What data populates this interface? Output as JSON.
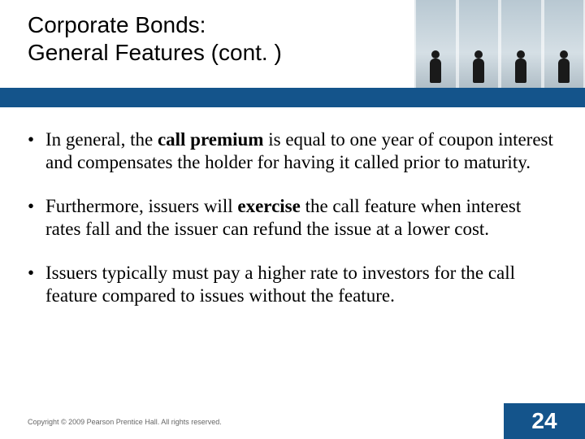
{
  "title_line1": "Corporate Bonds:",
  "title_line2": "General Features (cont. )",
  "colors": {
    "blue_bar": "#14548b",
    "background": "#ffffff",
    "text": "#000000",
    "footer_text": "#666666"
  },
  "bullets": [
    {
      "pre": "In general, the ",
      "bold": "call premium",
      "post": " is equal to one year of coupon interest and compensates the holder for having it called prior to maturity."
    },
    {
      "pre": "Furthermore, issuers will ",
      "bold": "exercise",
      "post": " the call feature when interest rates fall and the issuer can refund the issue at a lower cost."
    },
    {
      "pre": "",
      "bold": "",
      "post": "Issuers typically must pay a higher rate to investors for the call feature compared to issues without the feature."
    }
  ],
  "copyright": "Copyright © 2009 Pearson Prentice Hall. All rights reserved.",
  "page_number": "24"
}
